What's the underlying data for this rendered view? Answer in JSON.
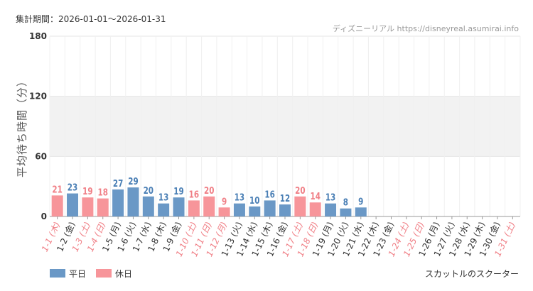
{
  "period_label": "集計期間：2026-01-01〜2026-01-31",
  "credit": "ディズニーリアル https://disneyreal.asumirai.info",
  "footer_caption": "スカットルのスクーター",
  "colors": {
    "weekday": "#6a98c6",
    "holiday": "#f7959a",
    "weekday_text": "#4a7fb5",
    "holiday_text": "#f07f86",
    "band": "#f2f2f2",
    "grid": "#e6e6e6"
  },
  "chart_data": {
    "type": "bar",
    "title": "",
    "xlabel": "",
    "ylabel": "平均待ち時間（分）",
    "ylim": [
      0,
      180
    ],
    "yticks": [
      0,
      60,
      120,
      180
    ],
    "shaded_band": [
      60,
      120
    ],
    "legend": {
      "placement": "bottom-left",
      "items": [
        {
          "label": "平日",
          "kind": "weekday"
        },
        {
          "label": "休日",
          "kind": "holiday"
        }
      ]
    },
    "categories": [
      "1-1 (木)",
      "1-2 (金)",
      "1-3 (土)",
      "1-4 (日)",
      "1-5 (月)",
      "1-6 (火)",
      "1-7 (水)",
      "1-8 (木)",
      "1-9 (金)",
      "1-10 (土)",
      "1-11 (日)",
      "1-12 (月)",
      "1-13 (火)",
      "1-14 (水)",
      "1-15 (木)",
      "1-16 (金)",
      "1-17 (土)",
      "1-18 (日)",
      "1-19 (月)",
      "1-20 (火)",
      "1-21 (水)",
      "1-22 (木)",
      "1-23 (金)",
      "1-24 (土)",
      "1-25 (日)",
      "1-26 (月)",
      "1-27 (火)",
      "1-28 (水)",
      "1-29 (木)",
      "1-30 (金)",
      "1-31 (土)"
    ],
    "values": [
      21,
      23,
      19,
      18,
      27,
      29,
      20,
      13,
      19,
      16,
      20,
      9,
      13,
      10,
      16,
      12,
      20,
      14,
      13,
      8,
      9,
      null,
      null,
      null,
      null,
      null,
      null,
      null,
      null,
      null,
      null
    ],
    "day_kind": [
      "holiday",
      "weekday",
      "holiday",
      "holiday",
      "weekday",
      "weekday",
      "weekday",
      "weekday",
      "weekday",
      "holiday",
      "holiday",
      "holiday",
      "weekday",
      "weekday",
      "weekday",
      "weekday",
      "holiday",
      "holiday",
      "weekday",
      "weekday",
      "weekday",
      "weekday",
      "weekday",
      "holiday",
      "holiday",
      "weekday",
      "weekday",
      "weekday",
      "weekday",
      "weekday",
      "holiday"
    ]
  }
}
